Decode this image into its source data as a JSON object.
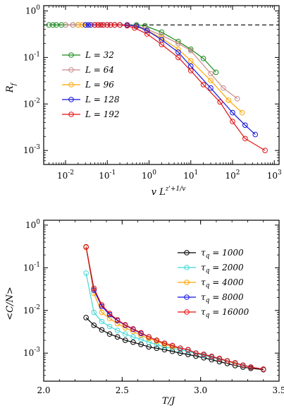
{
  "chart_data": [
    {
      "type": "line",
      "xscale": "log",
      "yscale": "log",
      "xlim": [
        0.003,
        1300
      ],
      "ylim": [
        0.0005,
        1.3
      ],
      "xlabel": "v L^{z'+1/v}",
      "ylabel": "R_f",
      "xticks": [
        {
          "v": 0.01,
          "base": "10",
          "exp": "-2"
        },
        {
          "v": 0.1,
          "base": "10",
          "exp": "-1"
        },
        {
          "v": 1,
          "base": "10",
          "exp": "0"
        },
        {
          "v": 10,
          "base": "10",
          "exp": "1"
        },
        {
          "v": 100,
          "base": "10",
          "exp": "2"
        },
        {
          "v": 1000,
          "base": "10",
          "exp": "3"
        }
      ],
      "yticks": [
        {
          "v": 0.001,
          "base": "10",
          "exp": "-3"
        },
        {
          "v": 0.01,
          "base": "10",
          "exp": "-2"
        },
        {
          "v": 0.1,
          "base": "10",
          "exp": "-1"
        },
        {
          "v": 1,
          "base": "10",
          "exp": "0"
        }
      ],
      "reference_line": {
        "y": 0.5,
        "style": "dashed"
      },
      "legend_position": "left",
      "series": [
        {
          "name": "L = 32",
          "color": "#1a8a1a",
          "x": [
            0.004,
            0.005,
            0.006,
            0.008,
            0.01,
            0.015,
            0.02,
            0.03,
            0.05,
            0.08,
            0.12,
            0.2,
            0.3,
            0.5,
            0.8,
            2,
            5,
            10,
            20,
            40
          ],
          "y": [
            0.5,
            0.5,
            0.5,
            0.5,
            0.5,
            0.5,
            0.5,
            0.5,
            0.5,
            0.5,
            0.5,
            0.5,
            0.5,
            0.5,
            0.48,
            0.35,
            0.22,
            0.15,
            0.095,
            0.048
          ]
        },
        {
          "name": "L = 64",
          "color": "#c98a8a",
          "x": [
            0.01,
            0.015,
            0.02,
            0.025,
            0.03,
            0.04,
            0.05,
            0.07,
            0.1,
            0.15,
            0.2,
            0.3,
            0.5,
            0.8,
            2,
            5,
            10,
            30,
            60,
            130
          ],
          "y": [
            0.5,
            0.5,
            0.5,
            0.5,
            0.5,
            0.5,
            0.5,
            0.5,
            0.5,
            0.5,
            0.5,
            0.5,
            0.48,
            0.42,
            0.3,
            0.2,
            0.14,
            0.045,
            0.022,
            0.013
          ]
        },
        {
          "name": "L = 96",
          "color": "#ffa500",
          "x": [
            0.02,
            0.025,
            0.03,
            0.035,
            0.04,
            0.05,
            0.06,
            0.08,
            0.1,
            0.15,
            0.2,
            0.3,
            0.5,
            0.9,
            2,
            5,
            10,
            30,
            80,
            170
          ],
          "y": [
            0.5,
            0.5,
            0.5,
            0.5,
            0.5,
            0.5,
            0.5,
            0.5,
            0.5,
            0.5,
            0.5,
            0.5,
            0.46,
            0.38,
            0.26,
            0.15,
            0.085,
            0.032,
            0.012,
            0.0065
          ]
        },
        {
          "name": "L = 128",
          "color": "#1010dd",
          "x": [
            0.03,
            0.035,
            0.04,
            0.05,
            0.06,
            0.07,
            0.08,
            0.1,
            0.12,
            0.15,
            0.2,
            0.3,
            0.5,
            0.9,
            2,
            5,
            10,
            30,
            100,
            200,
            350
          ],
          "y": [
            0.5,
            0.5,
            0.5,
            0.5,
            0.5,
            0.5,
            0.5,
            0.5,
            0.5,
            0.5,
            0.5,
            0.5,
            0.47,
            0.38,
            0.24,
            0.13,
            0.065,
            0.022,
            0.0065,
            0.0035,
            0.0022
          ]
        },
        {
          "name": "L = 192",
          "color": "#e01010",
          "x": [
            0.05,
            0.06,
            0.07,
            0.08,
            0.1,
            0.12,
            0.15,
            0.2,
            0.3,
            0.45,
            0.9,
            2,
            5,
            10,
            20,
            50,
            100,
            200,
            600
          ],
          "y": [
            0.5,
            0.5,
            0.5,
            0.5,
            0.5,
            0.5,
            0.5,
            0.5,
            0.48,
            0.43,
            0.32,
            0.19,
            0.1,
            0.052,
            0.026,
            0.011,
            0.0042,
            0.0018,
            0.001
          ]
        }
      ]
    },
    {
      "type": "line",
      "xscale": "linear",
      "yscale": "log",
      "xlim": [
        2.0,
        3.5
      ],
      "ylim": [
        0.00022,
        1.3
      ],
      "xlabel": "T/J",
      "ylabel": "<C/N>",
      "xticks": [
        {
          "v": 2.0,
          "label": "2.0"
        },
        {
          "v": 2.5,
          "label": "2.5"
        },
        {
          "v": 3.0,
          "label": "3.0"
        },
        {
          "v": 3.5,
          "label": "3.5"
        }
      ],
      "yticks": [
        {
          "v": 0.001,
          "base": "10",
          "exp": "-3"
        },
        {
          "v": 0.01,
          "base": "10",
          "exp": "-2"
        },
        {
          "v": 0.1,
          "base": "10",
          "exp": "-1"
        },
        {
          "v": 1,
          "base": "10",
          "exp": "0"
        }
      ],
      "legend_position": "right",
      "series": [
        {
          "name": "τq = 1000",
          "color": "#000000",
          "x": [
            2.27,
            2.32,
            2.37,
            2.42,
            2.47,
            2.52,
            2.57,
            2.62,
            2.67,
            2.72,
            2.77,
            2.82,
            2.87,
            2.92,
            2.97,
            3.02,
            3.07,
            3.12,
            3.17,
            3.22,
            3.27,
            3.32,
            3.4
          ],
          "y": [
            0.0068,
            0.0045,
            0.0035,
            0.0028,
            0.0024,
            0.002,
            0.0018,
            0.0016,
            0.0014,
            0.0013,
            0.0012,
            0.0011,
            0.001,
            0.00093,
            0.00085,
            0.00078,
            0.0007,
            0.00063,
            0.00057,
            0.00051,
            0.00047,
            0.00044,
            0.00041
          ]
        },
        {
          "name": "τq = 2000",
          "color": "#40d8d8",
          "x": [
            2.27,
            2.32,
            2.37,
            2.42,
            2.47,
            2.52,
            2.57,
            2.62,
            2.67,
            2.72,
            2.77,
            2.82,
            2.87,
            2.92,
            2.97,
            3.02,
            3.07,
            3.12,
            3.17,
            3.22,
            3.27,
            3.32,
            3.4
          ],
          "y": [
            0.075,
            0.009,
            0.0055,
            0.0042,
            0.0034,
            0.0028,
            0.0024,
            0.0021,
            0.0018,
            0.0016,
            0.0014,
            0.0013,
            0.0012,
            0.0011,
            0.00098,
            0.00088,
            0.0008,
            0.00072,
            0.00064,
            0.00057,
            0.00051,
            0.00047,
            0.00042
          ]
        },
        {
          "name": "τq = 4000",
          "color": "#ffa500",
          "x": [
            2.27,
            2.32,
            2.37,
            2.42,
            2.47,
            2.52,
            2.57,
            2.62,
            2.67,
            2.72,
            2.77,
            2.82,
            2.87,
            2.92,
            2.97,
            3.02,
            3.07,
            3.12,
            3.17,
            3.22,
            3.27,
            3.32,
            3.4
          ],
          "y": [
            0.3,
            0.025,
            0.009,
            0.0065,
            0.0049,
            0.0039,
            0.0032,
            0.0026,
            0.0022,
            0.0019,
            0.0016,
            0.0014,
            0.0013,
            0.0012,
            0.001,
            0.00092,
            0.00082,
            0.00073,
            0.00065,
            0.00058,
            0.00052,
            0.00047,
            0.00042
          ]
        },
        {
          "name": "τq = 8000",
          "color": "#1010dd",
          "x": [
            2.27,
            2.32,
            2.37,
            2.42,
            2.47,
            2.52,
            2.57,
            2.62,
            2.67,
            2.72,
            2.77,
            2.82,
            2.87,
            2.92,
            2.97,
            3.02,
            3.07,
            3.12,
            3.17,
            3.22,
            3.27,
            3.32,
            3.4
          ],
          "y": [
            0.31,
            0.03,
            0.0125,
            0.008,
            0.0058,
            0.0045,
            0.0036,
            0.0029,
            0.0024,
            0.002,
            0.0017,
            0.0015,
            0.0013,
            0.0012,
            0.001,
            0.00093,
            0.00083,
            0.00074,
            0.00066,
            0.00059,
            0.00052,
            0.00047,
            0.00042
          ]
        },
        {
          "name": "τq = 16000",
          "color": "#e01010",
          "x": [
            2.27,
            2.32,
            2.37,
            2.42,
            2.47,
            2.52,
            2.57,
            2.62,
            2.67,
            2.72,
            2.77,
            2.82,
            2.87,
            2.92,
            2.97,
            3.02,
            3.07,
            3.12,
            3.17,
            3.22,
            3.27,
            3.32,
            3.4
          ],
          "y": [
            0.31,
            0.033,
            0.0135,
            0.0085,
            0.006,
            0.0046,
            0.0037,
            0.003,
            0.0024,
            0.002,
            0.0017,
            0.0015,
            0.0013,
            0.0012,
            0.001,
            0.00094,
            0.00084,
            0.00075,
            0.00066,
            0.00059,
            0.00052,
            0.00047,
            0.00042
          ]
        }
      ]
    }
  ]
}
